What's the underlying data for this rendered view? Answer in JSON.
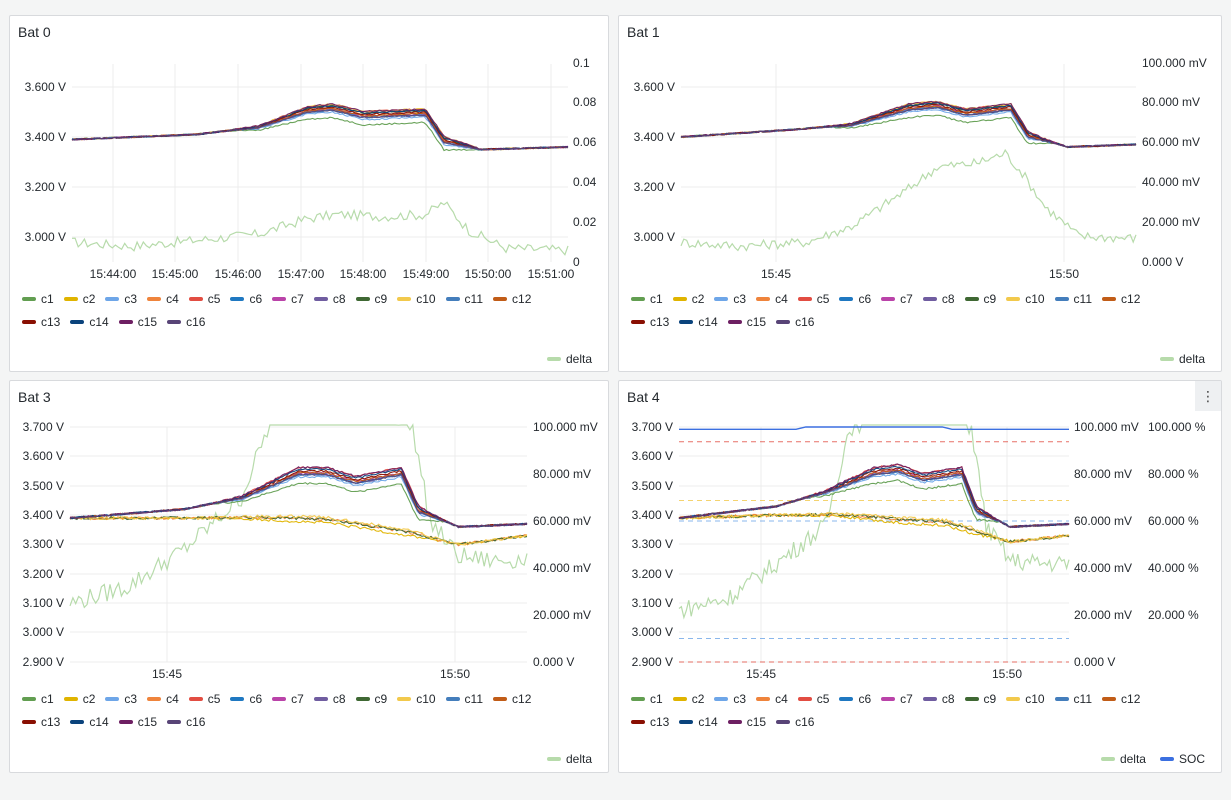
{
  "panels": [
    {
      "title": "Bat 0",
      "left_ticks": [
        "3.600 V",
        "3.400 V",
        "3.200 V",
        "3.000 V"
      ],
      "right_ticks": [
        "0.1",
        "0.08",
        "0.06",
        "0.04",
        "0.02",
        "0"
      ],
      "x_ticks": [
        "15:44:00",
        "15:45:00",
        "15:46:00",
        "15:47:00",
        "15:48:00",
        "15:49:00",
        "15:50:00",
        "15:51:00"
      ],
      "legend_right": [
        "delta"
      ]
    },
    {
      "title": "Bat 1",
      "left_ticks": [
        "3.600 V",
        "3.400 V",
        "3.200 V",
        "3.000 V"
      ],
      "right_ticks": [
        "100.000 mV",
        "80.000 mV",
        "60.000 mV",
        "40.000 mV",
        "20.000 mV",
        "0.000 V"
      ],
      "x_ticks": [
        "15:45",
        "15:50"
      ],
      "legend_right": [
        "delta"
      ]
    },
    {
      "title": "Bat 3",
      "left_ticks": [
        "3.700 V",
        "3.600 V",
        "3.500 V",
        "3.400 V",
        "3.300 V",
        "3.200 V",
        "3.100 V",
        "3.000 V",
        "2.900 V"
      ],
      "right_ticks": [
        "100.000 mV",
        "80.000 mV",
        "60.000 mV",
        "40.000 mV",
        "20.000 mV",
        "0.000 V"
      ],
      "x_ticks": [
        "15:45",
        "15:50"
      ],
      "legend_right": [
        "delta"
      ]
    },
    {
      "title": "Bat 4",
      "left_ticks": [
        "3.700 V",
        "3.600 V",
        "3.500 V",
        "3.400 V",
        "3.300 V",
        "3.200 V",
        "3.100 V",
        "3.000 V",
        "2.900 V"
      ],
      "right_ticks": [
        "100.000 mV",
        "80.000 mV",
        "60.000 mV",
        "40.000 mV",
        "20.000 mV",
        "0.000 V"
      ],
      "right2_ticks": [
        "100.000 %",
        "80.000 %",
        "60.000 %",
        "40.000 %",
        "20.000 %"
      ],
      "x_ticks": [
        "15:45",
        "15:50"
      ],
      "legend_right": [
        "delta",
        "SOC"
      ],
      "menu_icon": "⋮"
    }
  ],
  "cells": [
    {
      "name": "c1",
      "color": "#629e51"
    },
    {
      "name": "c2",
      "color": "#e0b400"
    },
    {
      "name": "c3",
      "color": "#6ea6e8"
    },
    {
      "name": "c4",
      "color": "#ef843c"
    },
    {
      "name": "c5",
      "color": "#e24d42"
    },
    {
      "name": "c6",
      "color": "#1f78c1"
    },
    {
      "name": "c7",
      "color": "#ba43a9"
    },
    {
      "name": "c8",
      "color": "#705da0"
    },
    {
      "name": "c9",
      "color": "#3f6833"
    },
    {
      "name": "c10",
      "color": "#f2c94c"
    },
    {
      "name": "c11",
      "color": "#447ebc"
    },
    {
      "name": "c12",
      "color": "#c15c17"
    },
    {
      "name": "c13",
      "color": "#890f02"
    },
    {
      "name": "c14",
      "color": "#0a437c"
    },
    {
      "name": "c15",
      "color": "#6d1f62"
    },
    {
      "name": "c16",
      "color": "#584477"
    }
  ],
  "series_colors": {
    "delta": "#b7dbab",
    "SOC": "#3b6fe0"
  },
  "chart_data": [
    {
      "type": "line",
      "title": "Bat 0",
      "x_range_minutes": [
        0,
        8
      ],
      "x_labels": [
        "15:44:00",
        "15:45:00",
        "15:46:00",
        "15:47:00",
        "15:48:00",
        "15:49:00",
        "15:50:00",
        "15:51:00"
      ],
      "y_left_range_V": [
        2.9,
        3.7
      ],
      "y_right_range": [
        0,
        0.1
      ],
      "cells_mean_V": [
        [
          0,
          3.39
        ],
        [
          2,
          3.41
        ],
        [
          3,
          3.44
        ],
        [
          3.8,
          3.51
        ],
        [
          4.2,
          3.52
        ],
        [
          4.7,
          3.49
        ],
        [
          5.7,
          3.5
        ],
        [
          6.0,
          3.39
        ],
        [
          6.6,
          3.35
        ],
        [
          8,
          3.36
        ]
      ],
      "delta": [
        [
          0,
          0.01
        ],
        [
          1,
          0.008
        ],
        [
          2,
          0.011
        ],
        [
          3,
          0.014
        ],
        [
          3.8,
          0.022
        ],
        [
          4.3,
          0.024
        ],
        [
          5.0,
          0.023
        ],
        [
          5.7,
          0.024
        ],
        [
          6.0,
          0.03
        ],
        [
          6.4,
          0.016
        ],
        [
          7,
          0.007
        ],
        [
          8,
          0.006
        ]
      ]
    },
    {
      "type": "line",
      "title": "Bat 1",
      "x_labels": [
        "15:45",
        "15:50"
      ],
      "y_left_range_V": [
        2.9,
        3.7
      ],
      "y_right_range_mV": [
        0,
        100
      ],
      "cells_mean_V": [
        [
          0,
          3.4
        ],
        [
          2,
          3.43
        ],
        [
          3,
          3.45
        ],
        [
          4,
          3.52
        ],
        [
          4.5,
          3.53
        ],
        [
          5,
          3.5
        ],
        [
          5.8,
          3.52
        ],
        [
          6.1,
          3.41
        ],
        [
          6.8,
          3.36
        ],
        [
          8,
          3.37
        ]
      ],
      "delta_mV": [
        [
          0,
          10
        ],
        [
          1,
          8
        ],
        [
          2.2,
          10
        ],
        [
          3,
          18
        ],
        [
          4,
          37
        ],
        [
          4.5,
          48
        ],
        [
          5.2,
          50
        ],
        [
          5.7,
          55
        ],
        [
          6.0,
          45
        ],
        [
          6.4,
          28
        ],
        [
          7,
          13
        ],
        [
          8,
          12
        ]
      ]
    },
    {
      "type": "line",
      "title": "Bat 3",
      "x_labels": [
        "15:45",
        "15:50"
      ],
      "y_left_range_V": [
        2.9,
        3.7
      ],
      "y_right_range_mV": [
        0,
        100
      ],
      "cells_upper_mean_V": [
        [
          0,
          3.39
        ],
        [
          2,
          3.42
        ],
        [
          3,
          3.46
        ],
        [
          4,
          3.55
        ],
        [
          4.5,
          3.55
        ],
        [
          5,
          3.52
        ],
        [
          5.8,
          3.55
        ],
        [
          6.1,
          3.42
        ],
        [
          6.8,
          3.36
        ],
        [
          8,
          3.37
        ]
      ],
      "cells_lower_V": [
        [
          0,
          3.39
        ],
        [
          2,
          3.39
        ],
        [
          3.2,
          3.39
        ],
        [
          4.5,
          3.38
        ],
        [
          5.5,
          3.35
        ],
        [
          6.1,
          3.33
        ],
        [
          6.8,
          3.3
        ],
        [
          8,
          3.33
        ]
      ],
      "delta_mV": [
        [
          0,
          25
        ],
        [
          1,
          32
        ],
        [
          2,
          48
        ],
        [
          3,
          70
        ],
        [
          3.6,
          108
        ],
        [
          4.5,
          108
        ],
        [
          5.5,
          108
        ],
        [
          6.0,
          100
        ],
        [
          6.3,
          60
        ],
        [
          6.8,
          45
        ],
        [
          7.4,
          43
        ],
        [
          8,
          44
        ]
      ]
    },
    {
      "type": "line",
      "title": "Bat 4",
      "x_labels": [
        "15:45",
        "15:50"
      ],
      "y_left_range_V": [
        2.9,
        3.7
      ],
      "y_right_range_mV": [
        0,
        100
      ],
      "y_right2_range_pct": [
        0,
        100
      ],
      "cells_upper_mean_V": [
        [
          0,
          3.39
        ],
        [
          2,
          3.43
        ],
        [
          3,
          3.48
        ],
        [
          4,
          3.55
        ],
        [
          4.5,
          3.56
        ],
        [
          5,
          3.53
        ],
        [
          5.8,
          3.55
        ],
        [
          6.1,
          3.42
        ],
        [
          6.8,
          3.36
        ],
        [
          8,
          3.37
        ]
      ],
      "cells_lower_V": [
        [
          0,
          3.39
        ],
        [
          2,
          3.4
        ],
        [
          3.2,
          3.4
        ],
        [
          4.5,
          3.38
        ],
        [
          5.5,
          3.37
        ],
        [
          6.1,
          3.34
        ],
        [
          6.8,
          3.31
        ],
        [
          8,
          3.33
        ]
      ],
      "delta_mV": [
        [
          0,
          22
        ],
        [
          1,
          27
        ],
        [
          2,
          42
        ],
        [
          3,
          58
        ],
        [
          3.5,
          100
        ],
        [
          4.5,
          108
        ],
        [
          5.5,
          108
        ],
        [
          6.0,
          100
        ],
        [
          6.3,
          58
        ],
        [
          6.8,
          43
        ],
        [
          7.4,
          42
        ],
        [
          8,
          42
        ]
      ],
      "SOC_pct": [
        [
          0,
          99
        ],
        [
          2.4,
          99
        ],
        [
          2.6,
          100
        ],
        [
          5.4,
          100
        ],
        [
          5.6,
          99
        ],
        [
          8,
          99
        ]
      ],
      "threshold_lines_V": [
        {
          "v": 3.65,
          "color": "#e24d42"
        },
        {
          "v": 3.45,
          "color": "#f2c94c"
        },
        {
          "v": 3.38,
          "color": "#6ea6e8"
        },
        {
          "v": 2.98,
          "color": "#6ea6e8"
        },
        {
          "v": 2.9,
          "color": "#e24d42"
        }
      ]
    }
  ]
}
